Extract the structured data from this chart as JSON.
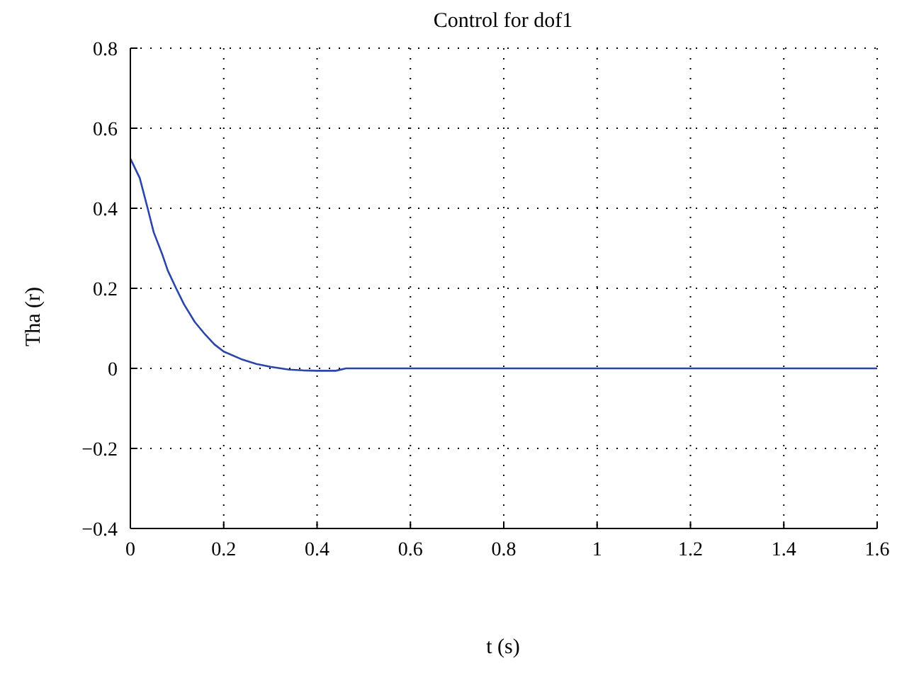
{
  "chart_data": {
    "type": "line",
    "title": "Control for dof1",
    "xlabel": "t (s)",
    "ylabel": "Tha (r)",
    "series": [
      {
        "color": "#2a46a8",
        "x": [
          0,
          0.02,
          0.037,
          0.05,
          0.068,
          0.08,
          0.098,
          0.115,
          0.138,
          0.16,
          0.18,
          0.2,
          0.24,
          0.27,
          0.3,
          0.34,
          0.37,
          0.4,
          0.44,
          0.462,
          0.5,
          0.8,
          1.2,
          1.6
        ],
        "values": [
          0.524,
          0.476,
          0.4,
          0.34,
          0.286,
          0.245,
          0.2,
          0.16,
          0.116,
          0.085,
          0.06,
          0.042,
          0.022,
          0.011,
          0.004,
          -0.003,
          -0.005,
          -0.006,
          -0.006,
          0,
          0,
          0,
          0,
          0
        ]
      }
    ],
    "xlim": [
      0,
      1.6
    ],
    "xticks": [
      0,
      0.2,
      0.4,
      0.6,
      0.8,
      1,
      1.2,
      1.4,
      1.6
    ],
    "ylim": [
      -0.4,
      0.8
    ],
    "yticks": [
      -0.4,
      -0.2,
      0,
      0.2,
      0.4,
      0.6,
      0.8
    ],
    "grid": true,
    "marker": "none",
    "line_style": "solid"
  }
}
